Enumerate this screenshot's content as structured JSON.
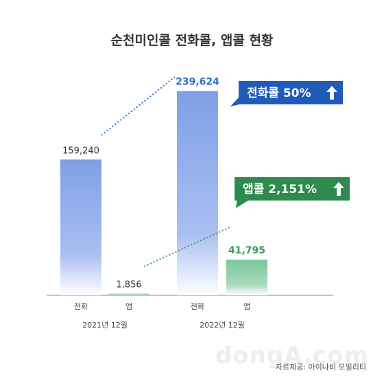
{
  "title": "순천미인콜 전화콜, 앱콜 현황",
  "source": "자료제공: 아이나비 모빌리티",
  "watermark": "dongA.com",
  "colors": {
    "call_bar": "#7f9fe6",
    "app_bar": "#7bc59a",
    "call_accent": "#2f6fc7",
    "app_accent": "#3a9a5a",
    "callout_call": "#1f5bb8",
    "callout_app": "#2e8a4e"
  },
  "chart_data": {
    "type": "bar",
    "title": "순천미인콜 전화콜, 앱콜 현황",
    "groups": [
      "2021년 12월",
      "2022년 12월"
    ],
    "categories": [
      "전화",
      "앱"
    ],
    "series": [
      {
        "group": "2021년 12월",
        "values": [
          159240,
          1856
        ],
        "labels": [
          "159,240",
          "1,856"
        ]
      },
      {
        "group": "2022년 12월",
        "values": [
          239624,
          41795
        ],
        "labels": [
          "239,624",
          "41,795"
        ]
      }
    ],
    "ylim": [
      0,
      290000
    ],
    "grid": false,
    "annotations": [
      {
        "series": "전화",
        "text": "전화콜 50%",
        "arrow": "up"
      },
      {
        "series": "앱",
        "text": "앱콜 2,151%",
        "arrow": "up"
      }
    ]
  }
}
